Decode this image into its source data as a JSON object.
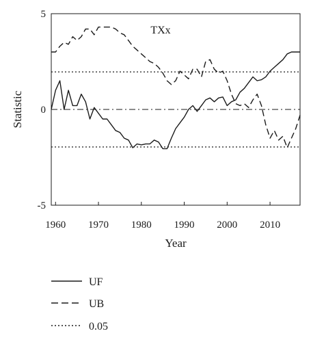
{
  "chart_data": {
    "type": "line",
    "title": "TXx",
    "xlabel": "Year",
    "ylabel": "Statistic",
    "xlim": [
      1959,
      2017
    ],
    "ylim": [
      -5,
      5
    ],
    "x_ticks": [
      1960,
      1970,
      1980,
      1990,
      2000,
      2010
    ],
    "y_ticks": [
      5,
      0,
      -5
    ],
    "grid": false,
    "legend_position": "below",
    "series": [
      {
        "name": "UF",
        "style": "solid",
        "color": "#1a1a1a",
        "x": [
          1959,
          1960,
          1961,
          1962,
          1963,
          1964,
          1965,
          1966,
          1967,
          1968,
          1969,
          1970,
          1971,
          1972,
          1973,
          1974,
          1975,
          1976,
          1977,
          1978,
          1979,
          1980,
          1981,
          1982,
          1983,
          1984,
          1985,
          1986,
          1987,
          1988,
          1989,
          1990,
          1991,
          1992,
          1993,
          1994,
          1995,
          1996,
          1997,
          1998,
          1999,
          2000,
          2001,
          2002,
          2003,
          2004,
          2005,
          2006,
          2007,
          2008,
          2009,
          2010,
          2011,
          2012,
          2013,
          2014,
          2015,
          2016,
          2017
        ],
        "values": [
          0.0,
          1.0,
          1.5,
          0.0,
          1.0,
          0.2,
          0.2,
          0.8,
          0.4,
          -0.5,
          0.1,
          -0.2,
          -0.5,
          -0.5,
          -0.8,
          -1.1,
          -1.2,
          -1.5,
          -1.6,
          -2.0,
          -1.8,
          -1.85,
          -1.8,
          -1.8,
          -1.6,
          -1.7,
          -2.05,
          -2.05,
          -1.5,
          -1.0,
          -0.7,
          -0.4,
          0.0,
          0.2,
          -0.1,
          0.2,
          0.5,
          0.6,
          0.4,
          0.6,
          0.65,
          0.2,
          0.4,
          0.5,
          0.9,
          1.1,
          1.4,
          1.7,
          1.5,
          1.55,
          1.7,
          2.0,
          2.2,
          2.4,
          2.6,
          2.9,
          3.0,
          3.0,
          3.0
        ]
      },
      {
        "name": "UB",
        "style": "dashed",
        "color": "#1a1a1a",
        "x": [
          1959,
          1960,
          1961,
          1962,
          1963,
          1964,
          1965,
          1966,
          1967,
          1968,
          1969,
          1970,
          1971,
          1972,
          1973,
          1974,
          1975,
          1976,
          1977,
          1978,
          1979,
          1980,
          1981,
          1982,
          1983,
          1984,
          1985,
          1986,
          1987,
          1988,
          1989,
          1990,
          1991,
          1992,
          1993,
          1994,
          1995,
          1996,
          1997,
          1998,
          1999,
          2000,
          2001,
          2002,
          2003,
          2004,
          2005,
          2006,
          2007,
          2008,
          2009,
          2010,
          2011,
          2012,
          2013,
          2014,
          2015,
          2016,
          2017
        ],
        "values": [
          3.0,
          3.0,
          3.3,
          3.5,
          3.4,
          3.8,
          3.6,
          3.8,
          4.2,
          4.2,
          3.9,
          4.3,
          4.3,
          4.3,
          4.3,
          4.2,
          4.0,
          3.9,
          3.6,
          3.3,
          3.1,
          2.9,
          2.7,
          2.5,
          2.4,
          2.2,
          1.9,
          1.5,
          1.3,
          1.5,
          2.0,
          1.8,
          1.6,
          2.1,
          2.1,
          1.7,
          2.5,
          2.6,
          2.1,
          1.9,
          2.0,
          1.5,
          0.8,
          0.3,
          0.2,
          0.3,
          0.1,
          0.5,
          0.8,
          0.2,
          -0.8,
          -1.5,
          -1.1,
          -1.6,
          -1.4,
          -2.0,
          -1.5,
          -1.0,
          -0.3
        ]
      },
      {
        "name": "0.05",
        "style": "dotted",
        "color": "#1a1a1a",
        "levels": [
          1.96,
          -1.96
        ]
      }
    ],
    "reference_line": {
      "style": "dash-dot",
      "value": 0
    }
  }
}
